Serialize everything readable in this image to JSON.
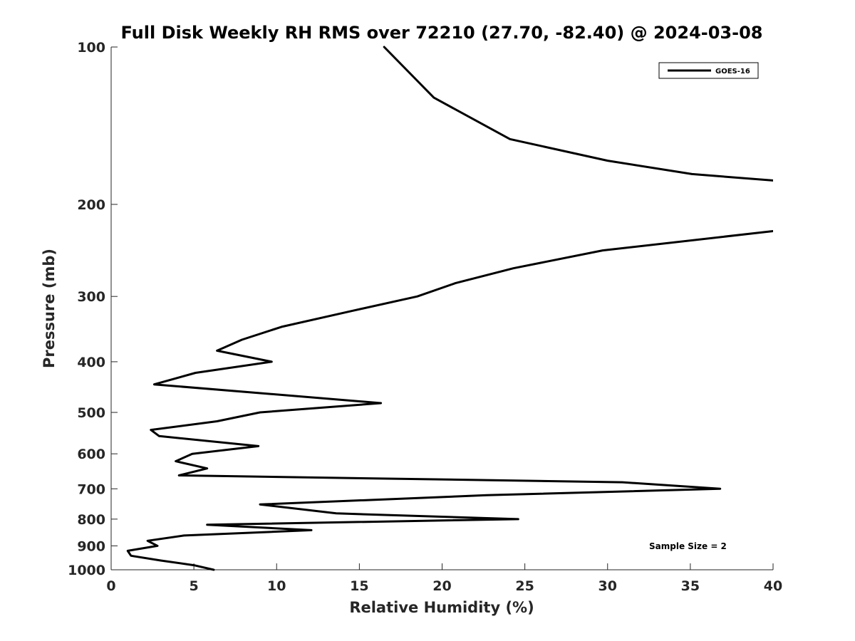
{
  "chart_data": {
    "type": "line",
    "title": "Full Disk Weekly RH RMS over 72210 (27.70, -82.40) @ 2024-03-08",
    "xlabel": "Relative Humidity (%)",
    "ylabel": "Pressure (mb)",
    "xlim": [
      0,
      40
    ],
    "ylim": [
      1000,
      100
    ],
    "yscale": "log",
    "y_reversed": true,
    "grid": false,
    "legend_position": "top-right",
    "x_ticks": [
      "0",
      "5",
      "10",
      "15",
      "20",
      "25",
      "30",
      "35",
      "40"
    ],
    "y_ticks": [
      "100",
      "200",
      "300",
      "400",
      "500",
      "600",
      "700",
      "800",
      "900",
      "1000"
    ],
    "annotation": "Sample Size = 2",
    "series": [
      {
        "name": "GOES-16",
        "color": "#000000",
        "segments": [
          {
            "x": [
              16.5,
              19.5,
              24.1,
              30.0,
              35.1,
              40.0
            ],
            "y": [
              100,
              125,
              150,
              165,
              175,
              180
            ]
          },
          {
            "x": [
              40.0,
              29.7,
              24.3,
              20.8,
              18.5,
              14.5,
              10.3,
              7.9,
              6.4,
              9.7,
              5.1,
              2.6,
              16.3,
              9.0,
              6.4,
              2.4,
              2.9,
              8.9,
              4.9,
              3.9,
              5.8,
              4.1,
              30.9,
              36.8,
              22.7,
              9.0,
              13.6,
              24.6,
              5.8,
              12.1,
              4.4,
              2.2,
              2.8,
              1.0,
              1.2,
              3.0,
              5.0,
              6.2
            ],
            "y": [
              225,
              245,
              265,
              283,
              300,
              320,
              343,
              363,
              381,
              400,
              420,
              442,
              480,
              500,
              520,
              540,
              555,
              580,
              600,
              620,
              640,
              660,
              680,
              700,
              720,
              750,
              780,
              800,
              820,
              840,
              860,
              880,
              900,
              920,
              940,
              960,
              980,
              1000
            ]
          }
        ]
      }
    ]
  }
}
